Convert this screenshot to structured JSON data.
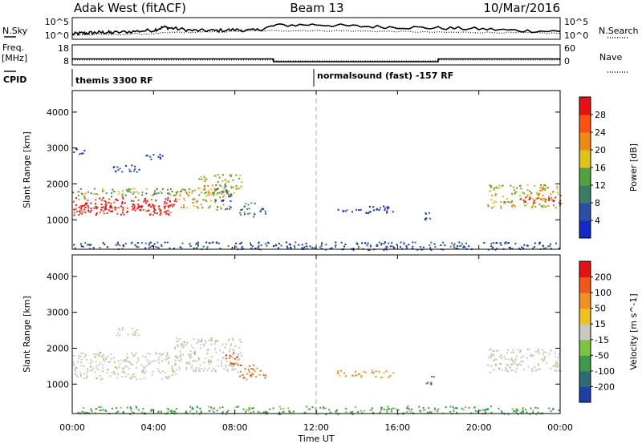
{
  "header": {
    "title_left": "Adak West (fitACF)",
    "title_center": "Beam 13",
    "title_right": "10/Mar/2016"
  },
  "left_labels": {
    "nsky": "N.Sky",
    "freq": "Freq.",
    "freq_unit": "[MHz]",
    "cpid": "CPID"
  },
  "right_labels": {
    "nsearch": "N.Search",
    "nave": "Nave"
  },
  "top_axes": {
    "noise_ticks_left": [
      "10^5",
      "10^0"
    ],
    "noise_ticks_right": [
      "10^5",
      "10^0"
    ],
    "freq_ticks_left": [
      "18",
      "8"
    ],
    "nave_ticks_right": [
      "60",
      "0"
    ]
  },
  "cpid_segments": [
    {
      "label": "themis 3300 RF"
    },
    {
      "label": "normalsound (fast) -157 RF"
    }
  ],
  "chart_data": {
    "type": "heatmap",
    "xlabel": "Time UT",
    "x_ticks": [
      "00:00",
      "04:00",
      "08:00",
      "12:00",
      "16:00",
      "20:00",
      "00:00"
    ],
    "x_range_hours": [
      0,
      24
    ],
    "x_tick_hours": [
      0,
      4,
      8,
      12,
      16,
      20,
      24
    ],
    "ylabel": "Slant Range [km]",
    "y_ticks": [
      "1000",
      "2000",
      "3000",
      "4000"
    ],
    "y_tick_values": [
      1000,
      2000,
      3000,
      4000
    ],
    "y_range_km": [
      180,
      4600
    ],
    "divider_hour": 12,
    "noise_sky": [
      [
        0,
        1.2
      ],
      [
        0.5,
        1.4
      ],
      [
        1,
        1.5
      ],
      [
        1.5,
        1.6
      ],
      [
        2,
        1.5
      ],
      [
        3,
        1.8
      ],
      [
        4,
        2.1
      ],
      [
        4.5,
        2.8
      ],
      [
        5,
        2.5
      ],
      [
        6,
        2.0
      ],
      [
        7,
        2.0
      ],
      [
        8,
        2.2
      ],
      [
        9,
        2.0
      ],
      [
        10,
        3.2
      ],
      [
        12,
        3.4
      ],
      [
        14,
        3.0
      ],
      [
        16,
        2.8
      ],
      [
        18,
        2.6
      ],
      [
        20,
        2.4
      ],
      [
        22,
        2.0
      ],
      [
        24,
        1.8
      ]
    ],
    "noise_search": [
      [
        0,
        1.0
      ],
      [
        2,
        1.1
      ],
      [
        4,
        1.3
      ],
      [
        5,
        1.6
      ],
      [
        6,
        1.6
      ],
      [
        8,
        1.8
      ],
      [
        10,
        2.0
      ],
      [
        12,
        2.0
      ],
      [
        14,
        1.9
      ],
      [
        16,
        1.8
      ],
      [
        18,
        1.6
      ],
      [
        20,
        1.6
      ],
      [
        22,
        1.5
      ],
      [
        24,
        1.4
      ]
    ],
    "freq_segments": [
      {
        "start": 0,
        "end": 9.9,
        "mhz": 11.0
      },
      {
        "start": 9.9,
        "end": 18.0,
        "mhz": 9.6
      },
      {
        "start": 18.0,
        "end": 24,
        "mhz": 11.0
      }
    ],
    "nave_segments": [
      {
        "start": 0,
        "end": 9.9,
        "value": 15
      },
      {
        "start": 9.9,
        "end": 18.0,
        "value": 12
      },
      {
        "start": 18.0,
        "end": 24,
        "value": 15
      }
    ],
    "panels": [
      {
        "name": "power",
        "colorbar_label": "Power [dB]",
        "cb_ticks": [
          "4",
          "8",
          "12",
          "16",
          "20",
          "24",
          "28"
        ],
        "cb_colors": [
          "#1428c8",
          "#2a4fa6",
          "#3c7d6a",
          "#4fa33f",
          "#e0c21a",
          "#f08a14",
          "#ff5010",
          "#e81010"
        ],
        "regions": [
          {
            "t0": 0.0,
            "t1": 5.1,
            "r0": 1150,
            "r1": 1650,
            "v": 0.92
          },
          {
            "t0": 0.2,
            "t1": 5.0,
            "r0": 1250,
            "r1": 1450,
            "v": 1.0
          },
          {
            "t0": 0.0,
            "t1": 5.1,
            "r0": 1650,
            "r1": 1900,
            "v": 0.45
          },
          {
            "t0": 0.0,
            "t1": 0.6,
            "r0": 2800,
            "r1": 3000,
            "v": 0.1
          },
          {
            "t0": 2.0,
            "t1": 3.3,
            "r0": 2350,
            "r1": 2600,
            "v": 0.15
          },
          {
            "t0": 3.3,
            "t1": 4.5,
            "r0": 2700,
            "r1": 2850,
            "v": 0.1
          },
          {
            "t0": 5.0,
            "t1": 7.4,
            "r0": 1350,
            "r1": 1900,
            "v": 0.6
          },
          {
            "t0": 6.2,
            "t1": 8.3,
            "r0": 1700,
            "r1": 2300,
            "v": 0.55
          },
          {
            "t0": 7.0,
            "t1": 7.8,
            "r0": 1300,
            "r1": 2000,
            "v": 0.25
          },
          {
            "t0": 8.2,
            "t1": 9.0,
            "r0": 1100,
            "r1": 1500,
            "v": 0.35
          },
          {
            "t0": 8.9,
            "t1": 9.6,
            "r0": 1150,
            "r1": 1350,
            "v": 0.15
          },
          {
            "t0": 13.0,
            "t1": 15.8,
            "r0": 1200,
            "r1": 1400,
            "v": 0.08
          },
          {
            "t0": 17.3,
            "t1": 17.8,
            "r0": 1000,
            "r1": 1250,
            "v": 0.1
          },
          {
            "t0": 20.4,
            "t1": 24.0,
            "r0": 1350,
            "r1": 2000,
            "v": 0.55
          },
          {
            "t0": 22.0,
            "t1": 24.0,
            "r0": 1450,
            "r1": 1650,
            "v": 0.95
          },
          {
            "t0": 0.0,
            "t1": 24.0,
            "r0": 180,
            "r1": 400,
            "v": 0.15
          }
        ]
      },
      {
        "name": "velocity",
        "colorbar_label": "Velocity [m s^-1]",
        "cb_ticks": [
          "200",
          "100",
          "50",
          "15",
          "-15",
          "-50",
          "-100",
          "-200"
        ],
        "cb_colors": [
          "#1e3ea8",
          "#2e6a76",
          "#3c9a4a",
          "#7cc43e",
          "#c8c8c0",
          "#f0c020",
          "#f09020",
          "#f05818",
          "#e81010"
        ],
        "regions": [
          {
            "t0": 0.0,
            "t1": 5.1,
            "r0": 1150,
            "r1": 1900,
            "v": 0.5
          },
          {
            "t0": 2.0,
            "t1": 3.3,
            "r0": 2350,
            "r1": 2600,
            "v": 0.5
          },
          {
            "t0": 5.0,
            "t1": 8.3,
            "r0": 1350,
            "r1": 2300,
            "v": 0.5
          },
          {
            "t0": 7.5,
            "t1": 8.2,
            "r0": 1550,
            "r1": 1900,
            "v": 0.85
          },
          {
            "t0": 8.2,
            "t1": 9.5,
            "r0": 1150,
            "r1": 1550,
            "v": 0.8
          },
          {
            "t0": 13.0,
            "t1": 15.8,
            "r0": 1200,
            "r1": 1400,
            "v": 0.7
          },
          {
            "t0": 17.3,
            "t1": 17.8,
            "r0": 1000,
            "r1": 1250,
            "v": 0.2
          },
          {
            "t0": 20.4,
            "t1": 24.0,
            "r0": 1350,
            "r1": 2000,
            "v": 0.5
          },
          {
            "t0": 0.0,
            "t1": 24.0,
            "r0": 180,
            "r1": 400,
            "v": 0.3
          }
        ]
      }
    ]
  }
}
